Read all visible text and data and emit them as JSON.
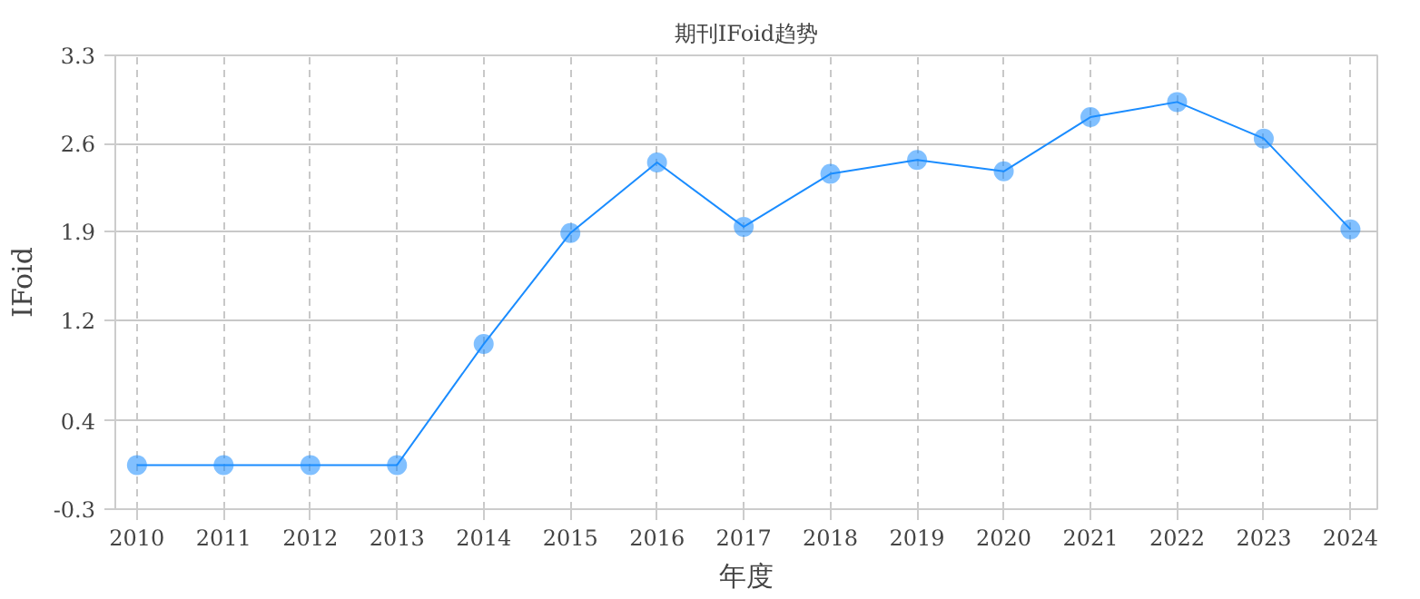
{
  "chart_data": {
    "type": "line",
    "title": "期刊IFoid趋势",
    "xlabel": "年度",
    "ylabel": "IFoid",
    "categories": [
      "2010",
      "2011",
      "2012",
      "2013",
      "2014",
      "2015",
      "2016",
      "2017",
      "2018",
      "2019",
      "2020",
      "2021",
      "2022",
      "2023",
      "2024"
    ],
    "series": [
      {
        "color": "#1a8cff",
        "values": [
          0.05,
          0.05,
          0.05,
          0.05,
          1.01,
          1.89,
          2.45,
          1.94,
          2.36,
          2.47,
          2.38,
          2.81,
          2.93,
          2.64,
          1.92
        ]
      }
    ],
    "ylim": [
      -0.3,
      3.3
    ],
    "yticks": [
      -0.3,
      0.4,
      1.2,
      1.9,
      2.6,
      3.3
    ],
    "grid": true,
    "marker": "circle",
    "line_style": "solid"
  }
}
